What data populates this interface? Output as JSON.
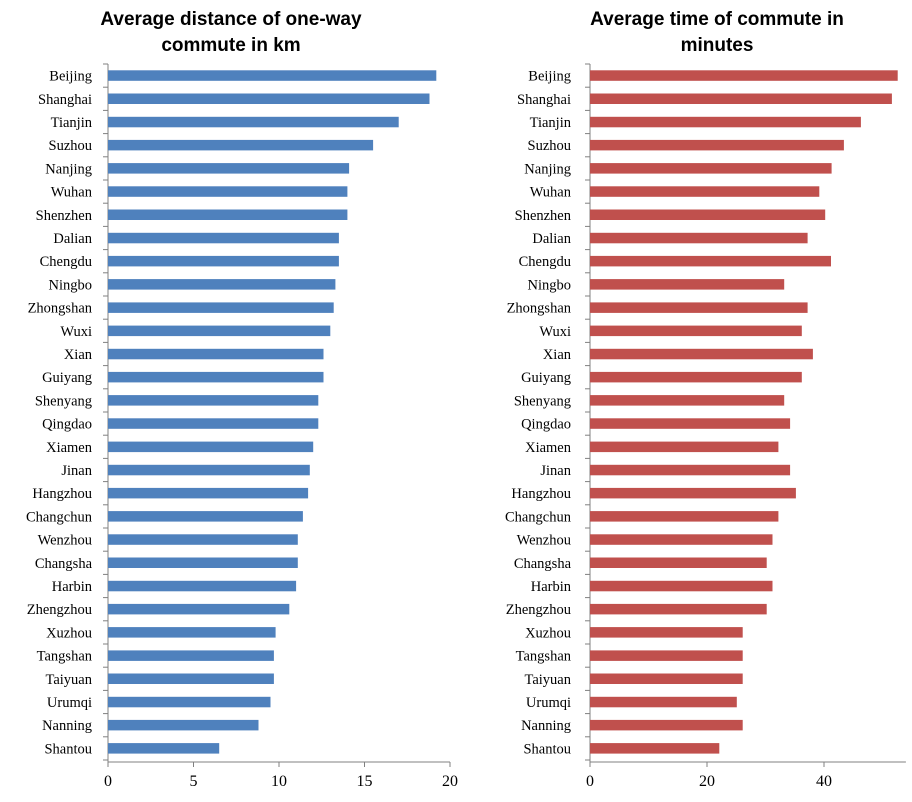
{
  "chart_data": [
    {
      "type": "bar",
      "orientation": "horizontal",
      "title_lines": [
        "Average distance of one-way",
        "commute in km"
      ],
      "categories": [
        "Beijing",
        "Shanghai",
        "Tianjin",
        "Suzhou",
        "Nanjing",
        "Wuhan",
        "Shenzhen",
        "Dalian",
        "Chengdu",
        "Ningbo",
        "Zhongshan",
        "Wuxi",
        "Xian",
        "Guiyang",
        "Shenyang",
        "Qingdao",
        "Xiamen",
        "Jinan",
        "Hangzhou",
        "Changchun",
        "Wenzhou",
        "Changsha",
        "Harbin",
        "Zhengzhou",
        "Xuzhou",
        "Tangshan",
        "Taiyuan",
        "Urumqi",
        "Nanning",
        "Shantou"
      ],
      "values": [
        19.2,
        18.8,
        17.0,
        15.5,
        14.1,
        14.0,
        14.0,
        13.5,
        13.5,
        13.3,
        13.2,
        13.0,
        12.6,
        12.6,
        12.3,
        12.3,
        12.0,
        11.8,
        11.7,
        11.4,
        11.1,
        11.1,
        11.0,
        10.6,
        9.8,
        9.7,
        9.7,
        9.5,
        8.8,
        6.5
      ],
      "xlim": [
        0,
        20
      ],
      "xticks": [
        "0",
        "5",
        "10",
        "15",
        "20"
      ],
      "color": "#4f81bd",
      "grid": false
    },
    {
      "type": "bar",
      "orientation": "horizontal",
      "title_lines": [
        "Average time of commute in",
        "minutes"
      ],
      "categories": [
        "Beijing",
        "Shanghai",
        "Tianjin",
        "Suzhou",
        "Nanjing",
        "Wuhan",
        "Shenzhen",
        "Dalian",
        "Chengdu",
        "Ningbo",
        "Zhongshan",
        "Wuxi",
        "Xian",
        "Guiyang",
        "Shenyang",
        "Qingdao",
        "Xiamen",
        "Jinan",
        "Hangzhou",
        "Changchun",
        "Wenzhou",
        "Changsha",
        "Harbin",
        "Zhengzhou",
        "Xuzhou",
        "Tangshan",
        "Taiyuan",
        "Urumqi",
        "Nanning",
        "Shantou"
      ],
      "values": [
        52.6,
        51.6,
        46.3,
        43.4,
        41.3,
        39.2,
        40.2,
        37.2,
        41.2,
        33.2,
        37.2,
        36.2,
        38.1,
        36.2,
        33.2,
        34.2,
        32.2,
        34.2,
        35.2,
        32.2,
        31.2,
        30.2,
        31.2,
        30.2,
        26.1,
        26.1,
        26.1,
        25.1,
        26.1,
        22.1
      ],
      "xlim": [
        0,
        54
      ],
      "xticks": [
        "0",
        "20",
        "40"
      ],
      "color": "#c0504d",
      "grid": false
    }
  ]
}
